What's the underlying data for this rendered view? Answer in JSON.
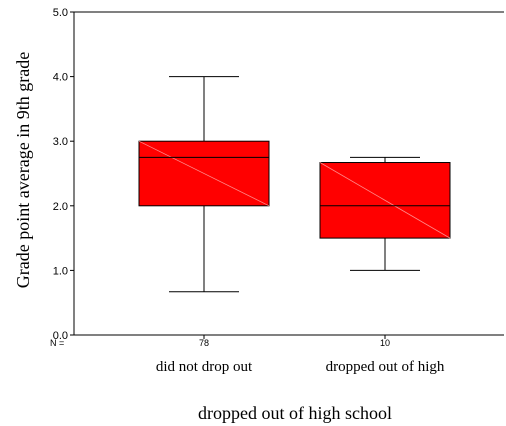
{
  "chart_data": {
    "type": "boxplot",
    "title": "",
    "xlabel": "dropped out of high school",
    "ylabel": "Grade point average in 9th grade",
    "ylim": [
      0.0,
      5.0
    ],
    "yticks": [
      "0.0",
      "1.0",
      "2.0",
      "3.0",
      "4.0",
      "5.0"
    ],
    "n_prefix": "N =",
    "grid": false,
    "box_color": "#ff0000",
    "groups": [
      {
        "category": "did not drop out",
        "n": "78",
        "min": 0.67,
        "q1": 2.0,
        "median": 2.75,
        "q3": 3.0,
        "max": 4.0
      },
      {
        "category": "dropped out of high",
        "n": "10",
        "min": 1.0,
        "q1": 1.5,
        "median": 2.0,
        "q3": 2.67,
        "max": 2.75
      }
    ]
  }
}
